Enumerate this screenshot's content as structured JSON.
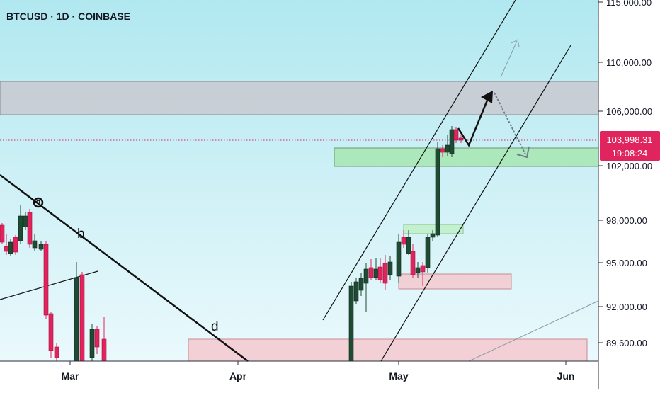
{
  "header": {
    "title": "BTCUSD · 1D · COINBASE"
  },
  "price_axis": {
    "ticks": [
      {
        "value": 115000,
        "label": "115,000.00"
      },
      {
        "value": 110000,
        "label": "110,000.00"
      },
      {
        "value": 106000,
        "label": "106,000.00"
      },
      {
        "value": 102000,
        "label": "102,000.00"
      },
      {
        "value": 98000,
        "label": "98,000.00"
      },
      {
        "value": 95000,
        "label": "95,000.00"
      },
      {
        "value": 92000,
        "label": "92,000.00"
      },
      {
        "value": 89600,
        "label": "89,600.00"
      }
    ],
    "current_price": "103,998.31",
    "countdown": "19:08:24"
  },
  "time_axis": {
    "labels": [
      "Mar",
      "Apr",
      "May",
      "Jun"
    ]
  },
  "annotations": {
    "wave_labels": [
      "b",
      "d"
    ],
    "pivot_mark": "?"
  },
  "colors": {
    "up": "#1f4a33",
    "down": "#e0245e",
    "zone_resistance": "#c9c9cf",
    "zone_demand": "#a7e6b1",
    "zone_supply": "#f4c9cf",
    "price_tag": "#e0245e"
  },
  "chart_data": {
    "type": "candlestick",
    "title": "BTCUSD · 1D · COINBASE",
    "ylim": [
      88300,
      115300
    ],
    "y_scale": "nonlinear",
    "x_labels": [
      "Mar",
      "Apr",
      "May",
      "Jun"
    ],
    "last_price": 103998.31,
    "zones": [
      {
        "kind": "resistance",
        "from": 106000,
        "to": 108300
      },
      {
        "kind": "demand",
        "from": 101850,
        "to": 103350
      },
      {
        "kind": "demand",
        "from": 96800,
        "to": 97500
      },
      {
        "kind": "supply",
        "from": 93300,
        "to": 94200
      },
      {
        "kind": "supply",
        "from": 87000,
        "to": 90100
      }
    ]
  }
}
